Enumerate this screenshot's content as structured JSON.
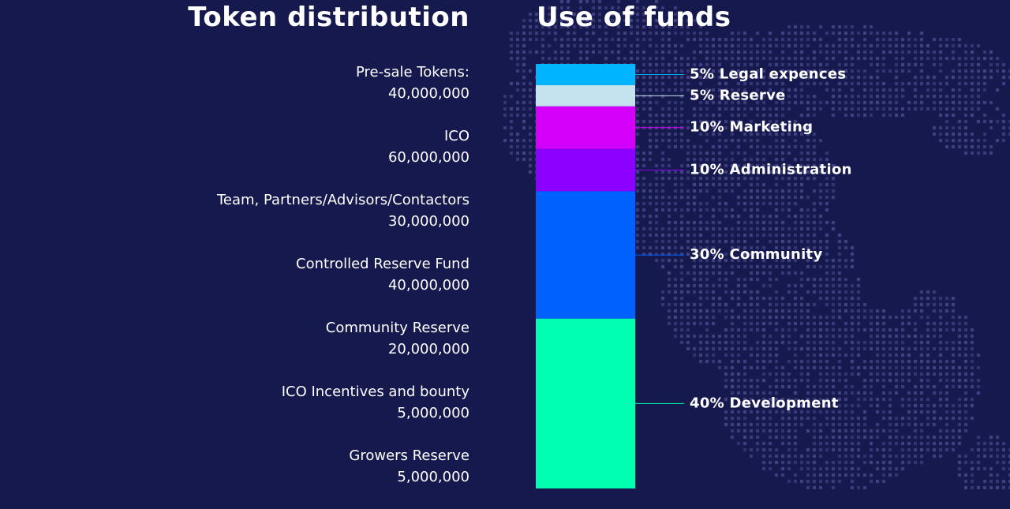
{
  "token_distribution": {
    "title": "Token distribution",
    "items": [
      {
        "label": "Pre-sale Tokens:",
        "value": "40,000,000"
      },
      {
        "label": "ICO",
        "value": "60,000,000"
      },
      {
        "label": "Team, Partners/Advisors/Contactors",
        "value": "30,000,000"
      },
      {
        "label": "Controlled Reserve Fund",
        "value": "40,000,000"
      },
      {
        "label": "Community Reserve",
        "value": "20,000,000"
      },
      {
        "label": "ICO Incentives and bounty",
        "value": "5,000,000"
      },
      {
        "label": "Growers Reserve",
        "value": "5,000,000"
      }
    ]
  },
  "use_of_funds": {
    "title": "Use of funds"
  },
  "chart_data": {
    "type": "bar",
    "stacked": true,
    "orientation": "vertical",
    "title": "Use of funds",
    "series": [
      {
        "label": "5% Legal expences",
        "percent": 5,
        "color": "#00b4ff"
      },
      {
        "label": "5% Reserve",
        "percent": 5,
        "color": "#c4e3ee"
      },
      {
        "label": "10% Marketing",
        "percent": 10,
        "color": "#d500f9"
      },
      {
        "label": "10% Administration",
        "percent": 10,
        "color": "#8c00ff"
      },
      {
        "label": "30% Community",
        "percent": 30,
        "color": "#0061ff"
      },
      {
        "label": "40% Development",
        "percent": 40,
        "color": "#00ffb0"
      }
    ]
  }
}
